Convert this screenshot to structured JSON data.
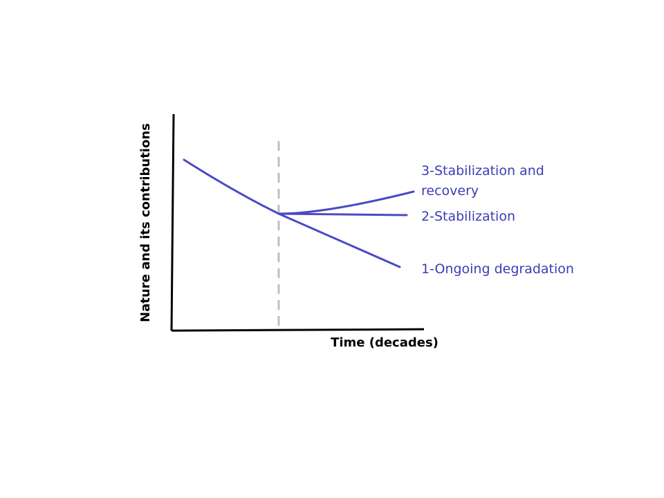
{
  "axes": {
    "y_label": "Nature and its contributions",
    "x_label": "Time (decades)"
  },
  "scenarios": [
    {
      "name": "1-Ongoing degradation"
    },
    {
      "name": "2-Stabilization"
    },
    {
      "name_line1": "3-Stabilization and",
      "name_line2": "recovery"
    }
  ],
  "colors": {
    "axis": "#000000",
    "divider": "#bfbfbf",
    "trend_line": "#4a4ac4",
    "label_text": "#3c3cb4"
  }
}
